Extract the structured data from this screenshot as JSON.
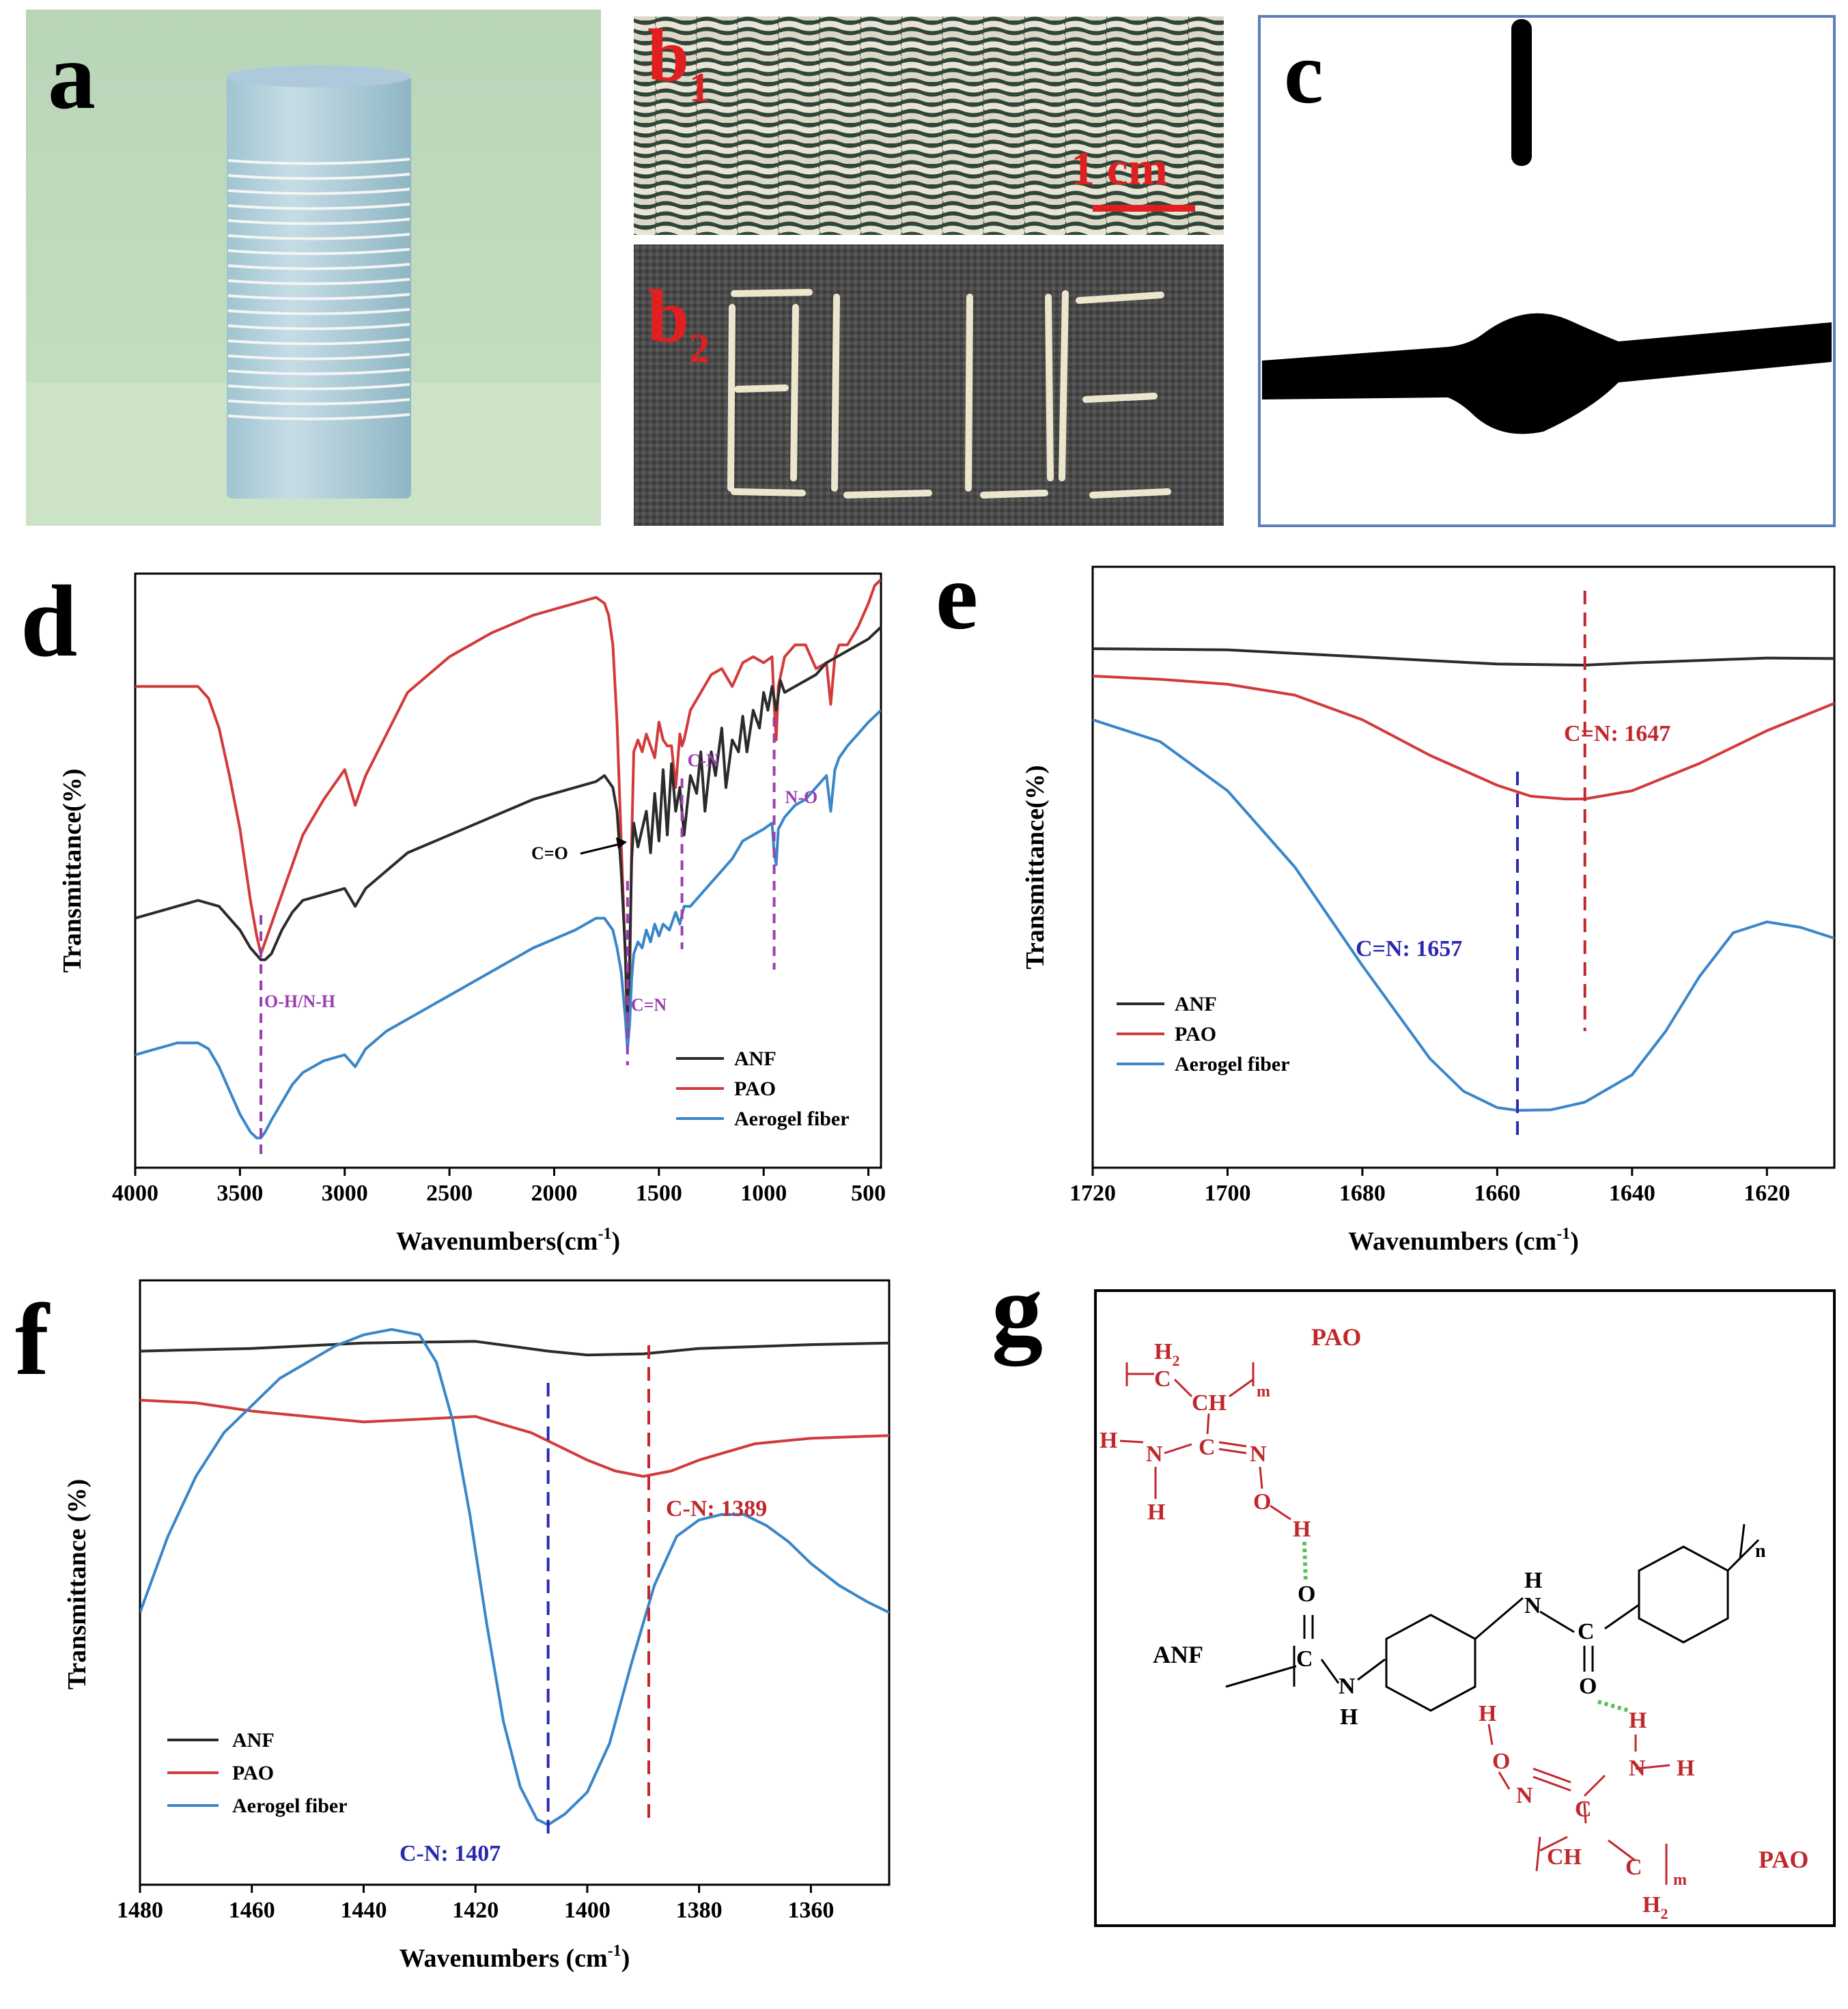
{
  "panels": {
    "a": {
      "label": "a"
    },
    "b1": {
      "label": "b",
      "sub": "1",
      "scale_bar": "1 cm"
    },
    "b2": {
      "label": "b",
      "sub": "2"
    },
    "c": {
      "label": "c"
    },
    "d": {
      "label": "d"
    },
    "e": {
      "label": "e"
    },
    "f": {
      "label": "f"
    },
    "g": {
      "label": "g"
    }
  },
  "colors": {
    "ANF": "#2b2b2b",
    "PAO": "#d33a3a",
    "Aerogel fiber": "#3a86c8",
    "blue_label": "#2a2ab0",
    "red_label": "#c0282d",
    "purple": "#9b3fae",
    "hbond": "#59c159"
  },
  "chart_data": [
    {
      "id": "d",
      "type": "line",
      "xlabel": "Wavenumbers(cm",
      "xlabel_sup": "-1",
      "xlabel_end": ")",
      "ylabel": "Transmittance(%)",
      "xlim": [
        4000,
        440
      ],
      "xticks": [
        "4000",
        "3500",
        "3000",
        "2500",
        "2000",
        "1500",
        "1000",
        "500"
      ],
      "legend": [
        "ANF",
        "PAO",
        "Aerogel fiber"
      ],
      "legend_position": "lower-right",
      "annotations": [
        "O-H/N-H",
        "C=O",
        "C=N",
        "C-N",
        "N-O"
      ],
      "series": [
        {
          "name": "PAO",
          "x": [
            4000,
            3800,
            3700,
            3650,
            3600,
            3550,
            3500,
            3450,
            3420,
            3400,
            3380,
            3350,
            3300,
            3250,
            3200,
            3100,
            3000,
            2950,
            2900,
            2800,
            2700,
            2500,
            2300,
            2100,
            1900,
            1800,
            1760,
            1740,
            1720,
            1700,
            1680,
            1660,
            1650,
            1640,
            1630,
            1620,
            1600,
            1580,
            1560,
            1520,
            1500,
            1480,
            1460,
            1440,
            1420,
            1400,
            1390,
            1380,
            1350,
            1300,
            1250,
            1200,
            1150,
            1100,
            1050,
            1000,
            960,
            950,
            940,
            930,
            900,
            850,
            800,
            750,
            700,
            680,
            660,
            640,
            600,
            550,
            500,
            470,
            440
          ],
          "y": [
            81,
            81,
            81,
            79,
            74,
            66,
            57,
            45,
            39,
            36,
            38,
            41,
            46,
            51,
            56,
            62,
            67,
            61,
            66,
            73,
            80,
            86,
            90,
            93,
            95,
            96,
            95,
            93,
            88,
            75,
            55,
            35,
            22,
            30,
            55,
            70,
            72,
            70,
            73,
            69,
            75,
            72,
            71,
            71,
            64,
            73,
            71,
            72,
            77,
            80,
            83,
            84,
            81,
            85,
            86,
            85,
            86,
            78,
            72,
            81,
            86,
            88,
            88,
            84,
            85,
            78,
            86,
            88,
            88,
            91,
            95,
            98,
            99
          ]
        },
        {
          "name": "ANF",
          "x": [
            4000,
            3800,
            3700,
            3600,
            3500,
            3450,
            3400,
            3380,
            3350,
            3300,
            3250,
            3200,
            3100,
            3000,
            2950,
            2900,
            2800,
            2700,
            2500,
            2300,
            2100,
            1900,
            1800,
            1760,
            1720,
            1700,
            1680,
            1660,
            1650,
            1640,
            1630,
            1620,
            1600,
            1560,
            1540,
            1520,
            1500,
            1480,
            1460,
            1440,
            1420,
            1400,
            1380,
            1350,
            1320,
            1300,
            1280,
            1250,
            1230,
            1200,
            1180,
            1150,
            1120,
            1100,
            1080,
            1050,
            1020,
            1000,
            980,
            960,
            940,
            920,
            900,
            850,
            800,
            750,
            700,
            650,
            600,
            550,
            500,
            470,
            440
          ],
          "y": [
            42,
            44,
            45,
            44,
            40,
            37,
            35,
            35,
            36,
            40,
            43,
            45,
            46,
            47,
            44,
            47,
            50,
            53,
            56,
            59,
            62,
            64,
            65,
            66,
            64,
            60,
            50,
            36,
            26,
            35,
            52,
            58,
            54,
            60,
            53,
            63,
            55,
            67,
            56,
            68,
            60,
            64,
            56,
            66,
            63,
            70,
            60,
            70,
            66,
            74,
            64,
            72,
            70,
            76,
            70,
            77,
            74,
            80,
            77,
            81,
            77,
            82,
            80,
            81,
            82,
            83,
            85,
            86,
            87,
            88,
            89,
            90,
            91
          ]
        },
        {
          "name": "Aerogel fiber",
          "x": [
            4000,
            3800,
            3700,
            3650,
            3600,
            3550,
            3500,
            3450,
            3420,
            3400,
            3380,
            3350,
            3300,
            3250,
            3200,
            3100,
            3000,
            2950,
            2900,
            2800,
            2700,
            2500,
            2300,
            2100,
            1900,
            1800,
            1760,
            1720,
            1700,
            1680,
            1660,
            1650,
            1640,
            1630,
            1620,
            1600,
            1580,
            1560,
            1540,
            1520,
            1500,
            1480,
            1450,
            1420,
            1400,
            1380,
            1350,
            1300,
            1250,
            1200,
            1150,
            1100,
            1050,
            1000,
            960,
            950,
            940,
            930,
            900,
            850,
            800,
            750,
            700,
            680,
            660,
            640,
            600,
            550,
            500,
            470,
            440
          ],
          "y": [
            19,
            21,
            21,
            20,
            17,
            13,
            9,
            6,
            5,
            5,
            6,
            8,
            11,
            14,
            16,
            18,
            19,
            17,
            20,
            23,
            25,
            29,
            33,
            37,
            40,
            42,
            42,
            40,
            37,
            33,
            25,
            20,
            24,
            32,
            36,
            38,
            37,
            40,
            38,
            41,
            39,
            41,
            40,
            43,
            41,
            44,
            44,
            46,
            48,
            50,
            52,
            55,
            56,
            57,
            58,
            53,
            51,
            57,
            59,
            61,
            62,
            64,
            66,
            60,
            67,
            69,
            71,
            73,
            75,
            76,
            77
          ]
        }
      ]
    },
    {
      "id": "e",
      "type": "line",
      "xlabel": "Wavenumbers (cm",
      "xlabel_sup": "-1",
      "xlabel_end": ")",
      "ylabel": "Transmittance(%)",
      "xlim": [
        1720,
        1610
      ],
      "xticks": [
        "1720",
        "1700",
        "1680",
        "1660",
        "1640",
        "1620"
      ],
      "legend": [
        "ANF",
        "PAO",
        "Aerogel fiber"
      ],
      "legend_position": "left",
      "annotations": [
        "C=N: 1647",
        "C=N: 1657"
      ],
      "series": [
        {
          "name": "ANF",
          "x": [
            1720,
            1700,
            1680,
            1660,
            1647,
            1640,
            1620,
            1610
          ],
          "y": [
            90,
            89.8,
            88.5,
            87.2,
            87,
            87.4,
            88.3,
            88.2
          ]
        },
        {
          "name": "PAO",
          "x": [
            1720,
            1710,
            1700,
            1690,
            1680,
            1670,
            1660,
            1655,
            1650,
            1647,
            1640,
            1630,
            1620,
            1610
          ],
          "y": [
            85,
            84.4,
            83.5,
            81.5,
            77,
            70.5,
            65,
            63,
            62.5,
            62.5,
            64,
            69,
            75,
            80
          ]
        },
        {
          "name": "Aerogel fiber",
          "x": [
            1720,
            1710,
            1700,
            1690,
            1680,
            1670,
            1665,
            1660,
            1657,
            1652,
            1647,
            1640,
            1635,
            1630,
            1625,
            1620,
            1615,
            1610
          ],
          "y": [
            77,
            73,
            64,
            50,
            32,
            15,
            9,
            6,
            5.5,
            5.6,
            7,
            12,
            20,
            30,
            38,
            40,
            39,
            37
          ]
        }
      ]
    },
    {
      "id": "f",
      "type": "line",
      "xlabel": "Wavenumbers (cm",
      "xlabel_sup": "-1",
      "xlabel_end": ")",
      "ylabel": "Transmittance (%)",
      "xlim": [
        1480,
        1346
      ],
      "xticks": [
        "1480",
        "1460",
        "1440",
        "1420",
        "1400",
        "1380",
        "1360"
      ],
      "legend": [
        "ANF",
        "PAO",
        "Aerogel fiber"
      ],
      "legend_position": "lower-left",
      "annotations": [
        "C-N: 1389",
        "C-N: 1407"
      ],
      "series": [
        {
          "name": "ANF",
          "x": [
            1480,
            1460,
            1440,
            1420,
            1407,
            1400,
            1390,
            1380,
            1360,
            1346
          ],
          "y": [
            90,
            90.5,
            91.5,
            91.8,
            90,
            89.3,
            89.5,
            90.5,
            91.2,
            91.5
          ]
        },
        {
          "name": "PAO",
          "x": [
            1480,
            1470,
            1460,
            1440,
            1420,
            1410,
            1400,
            1395,
            1390,
            1385,
            1380,
            1370,
            1360,
            1346
          ],
          "y": [
            81,
            80.5,
            79,
            77,
            78,
            75,
            70,
            68,
            67,
            68,
            70,
            73,
            74,
            74.5
          ]
        },
        {
          "name": "Aerogel fiber",
          "x": [
            1480,
            1475,
            1470,
            1465,
            1460,
            1455,
            1450,
            1445,
            1440,
            1435,
            1430,
            1427,
            1424,
            1421,
            1418,
            1415,
            1412,
            1409,
            1407,
            1404,
            1400,
            1396,
            1392,
            1388,
            1384,
            1380,
            1376,
            1372,
            1368,
            1364,
            1360,
            1355,
            1350,
            1346
          ],
          "y": [
            42,
            56,
            67,
            75,
            80,
            85,
            88,
            91,
            93,
            94,
            93,
            88,
            77,
            60,
            40,
            22,
            10,
            4,
            3,
            5,
            9,
            18,
            33,
            47,
            56,
            59,
            60,
            60,
            58,
            55,
            51,
            47,
            44,
            42
          ]
        }
      ]
    }
  ],
  "structure": {
    "labels": {
      "pao_top": "PAO",
      "pao_bottom": "PAO",
      "anf": "ANF",
      "h2_top": "H",
      "h2_top_sub": "2",
      "c_top": "C",
      "ch_top": "CH",
      "m": "m",
      "c_amidoxime": "C",
      "n": "N",
      "o": "O",
      "h": "H",
      "n_sub": "n"
    }
  }
}
